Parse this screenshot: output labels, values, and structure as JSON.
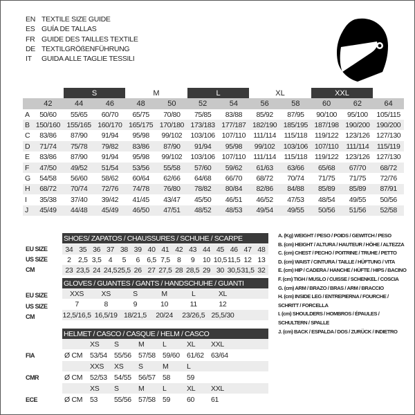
{
  "titles": [
    {
      "lang": "EN",
      "text": "TEXTILE SIZE GUIDE"
    },
    {
      "lang": "ES",
      "text": "GUÍA DE TALLAS"
    },
    {
      "lang": "FR",
      "text": "GUIDE DES TAILLES TEXTILE"
    },
    {
      "lang": "DE",
      "text": "TEXTILGRÖßENFÜHRUNG"
    },
    {
      "lang": "IT",
      "text": "GUIDA ALLE TAGLIE TESSILI"
    }
  ],
  "textile": {
    "bands": [
      {
        "label": "S",
        "dark": true
      },
      {
        "label": "M",
        "dark": false
      },
      {
        "label": "L",
        "dark": true
      },
      {
        "label": "XL",
        "dark": false
      },
      {
        "label": "XXL",
        "dark": true
      }
    ],
    "sizes": [
      "42",
      "44",
      "46",
      "48",
      "50",
      "52",
      "54",
      "56",
      "58",
      "60",
      "62",
      "64"
    ],
    "rows": [
      {
        "label": "A",
        "values": [
          "50/60",
          "55/65",
          "60/70",
          "65/75",
          "70/80",
          "75/85",
          "83/88",
          "85/92",
          "87/95",
          "90/100",
          "95/100",
          "105/115"
        ]
      },
      {
        "label": "B",
        "values": [
          "150/160",
          "155/165",
          "160/170",
          "165/175",
          "170/180",
          "173/183",
          "177/187",
          "182/190",
          "185/195",
          "187/198",
          "190/200",
          "190/200"
        ]
      },
      {
        "label": "C",
        "values": [
          "83/86",
          "87/90",
          "91/94",
          "95/98",
          "99/102",
          "103/106",
          "107/110",
          "111/114",
          "115/118",
          "119/122",
          "123/126",
          "127/130"
        ]
      },
      {
        "label": "D",
        "values": [
          "71/74",
          "75/78",
          "79/82",
          "83/86",
          "87/90",
          "91/94",
          "95/98",
          "99/102",
          "103/106",
          "107/110",
          "111/114",
          "115/119"
        ]
      },
      {
        "label": "E",
        "values": [
          "83/86",
          "87/90",
          "91/94",
          "95/98",
          "99/102",
          "103/106",
          "107/110",
          "111/114",
          "115/118",
          "119/122",
          "123/126",
          "127/130"
        ]
      },
      {
        "label": "F",
        "values": [
          "47/50",
          "49/52",
          "51/54",
          "53/56",
          "55/58",
          "57/60",
          "59/62",
          "61/63",
          "63/66",
          "65/68",
          "67/70",
          "68/72"
        ]
      },
      {
        "label": "G",
        "values": [
          "54/58",
          "56/60",
          "58/62",
          "60/64",
          "62/66",
          "64/68",
          "66/70",
          "68/72",
          "70/74",
          "71/75",
          "71/75",
          "72/76"
        ]
      },
      {
        "label": "H",
        "values": [
          "68/72",
          "70/74",
          "72/76",
          "74/78",
          "76/80",
          "78/82",
          "80/84",
          "82/86",
          "84/88",
          "85/89",
          "85/89",
          "87/91"
        ]
      },
      {
        "label": "I",
        "values": [
          "35/38",
          "37/40",
          "39/42",
          "41/45",
          "43/47",
          "45/50",
          "46/51",
          "46/52",
          "47/53",
          "48/54",
          "49/55",
          "50/56"
        ]
      },
      {
        "label": "J",
        "values": [
          "45/49",
          "44/48",
          "45/49",
          "46/50",
          "47/51",
          "48/52",
          "48/53",
          "49/54",
          "49/55",
          "50/56",
          "51/56",
          "52/58"
        ]
      }
    ]
  },
  "shoes": {
    "title": "SHOES/ ZAPATOS / CHAUSSURES / SCHUHE / SCARPE",
    "rows": [
      {
        "label": "EU SIZE",
        "values": [
          "34",
          "35",
          "36",
          "37",
          "38",
          "39",
          "40",
          "41",
          "42",
          "43",
          "44",
          "45",
          "46",
          "47",
          "48"
        ]
      },
      {
        "label": "US SIZE",
        "values": [
          "2",
          "2,5",
          "3,5",
          "4",
          "5",
          "6",
          "6,5",
          "7,5",
          "8",
          "9",
          "10",
          "10,5",
          "11,5",
          "12",
          "13"
        ]
      },
      {
        "label": "CM",
        "values": [
          "23",
          "23,5",
          "24",
          "24,5",
          "25,5",
          "26",
          "27",
          "27,5",
          "28",
          "28,5",
          "29",
          "30",
          "30,5",
          "31,5",
          "32"
        ]
      }
    ]
  },
  "gloves": {
    "title": "GLOVES / GUANTES / GANTS / HANDSCHUHE / GUANTI",
    "rows": [
      {
        "label": "EU SIZE",
        "values": [
          "XXS",
          "XS",
          "S",
          "M",
          "L",
          "XL"
        ]
      },
      {
        "label": "US SIZE",
        "values": [
          "7",
          "8",
          "9",
          "10",
          "11",
          "12"
        ]
      },
      {
        "label": "CM",
        "values": [
          "12,5/16,5",
          "16,5/19",
          "18/21,5",
          "20/24",
          "23/26,5",
          "25,5/30"
        ]
      }
    ]
  },
  "helmet": {
    "title": "HELMET / CASCO / CASQUE / HELM / CASCO",
    "groups": [
      {
        "label": "FIA",
        "unit": "Ø CM",
        "sizes": [
          "XS",
          "S",
          "M",
          "L",
          "XL",
          "XXL"
        ],
        "values": [
          "53/54",
          "55/56",
          "57/58",
          "59/60",
          "61/62",
          "63/64"
        ]
      },
      {
        "label": "CMR",
        "unit": "Ø CM",
        "sizes": [
          "XXS",
          "XS",
          "S",
          "M",
          "L"
        ],
        "values": [
          "52/53",
          "54/55",
          "56/57",
          "58",
          "59"
        ]
      },
      {
        "label": "ECE",
        "unit": "Ø CM",
        "sizes": [
          "XS",
          "S",
          "M",
          "L",
          "XL",
          "XXL"
        ],
        "values": [
          "53",
          "55/56",
          "57/58",
          "59",
          "60",
          "61"
        ]
      }
    ]
  },
  "legend": [
    "A. (Kg) WEIGHT / PESO / POIDS / GEWITCH / PESO",
    "B. (cm) HEIGHT / ALTURA / HAUTEUR / HÖHE / ALTEZZA",
    "C. (cm) CHEST / PECHO / POITRINE / TRUHE / PETTO",
    "D. (cm) WAIST / CINTURA / TAILLE / HÜFTUNG / VITA",
    "E. (cm) HIP / CADERA / HANCHE / HÜFTE / HIPS /  BACINO",
    "F.  (cm) TIGH / MUSLO / CUISSE / SCHENKEL / COSCIA",
    "G. (cm) ARM  / BRAZO / BRAS / ARM / BRACCIO",
    "H. (cm) INSIDE LEG / ENTREPIERNA / FOURCHE /",
    "SCHRITT / FORCELLA",
    "I.  (cm) SHOULDERS / HOMBROS / ÉPAULES /",
    "SCHULTERN / SPALLE",
    "J. (cm) BACK / ESPALDA / DOS / ZURÜCK / INDIETRO"
  ],
  "icons": {
    "logo": "helmet-icon"
  },
  "colors": {
    "dark_band": "#3a3a3a",
    "header_gray": "#c8c8c8",
    "stripe": "#ececec"
  }
}
